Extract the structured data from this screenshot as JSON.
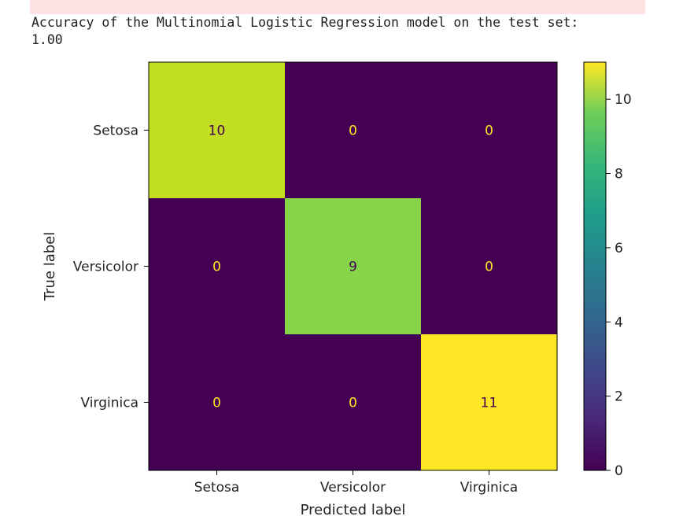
{
  "output": {
    "line1": "Accuracy of the Multinomial Logistic Regression model on the test set:",
    "line2": "1.00"
  },
  "chart_data": {
    "type": "heatmap",
    "title": "",
    "xlabel": "Predicted label",
    "ylabel": "True label",
    "x_categories": [
      "Setosa",
      "Versicolor",
      "Virginica"
    ],
    "y_categories": [
      "Setosa",
      "Versicolor",
      "Virginica"
    ],
    "values": [
      [
        10,
        0,
        0
      ],
      [
        0,
        9,
        0
      ],
      [
        0,
        0,
        11
      ]
    ],
    "colormap": "viridis",
    "colorbar": {
      "min": 0,
      "max": 11,
      "ticks": [
        0,
        2,
        4,
        6,
        8,
        10
      ]
    },
    "cell_colors": {
      "0": "#440154",
      "9": "#86d549",
      "10": "#c2df23",
      "11": "#fde725"
    },
    "text_colors": {
      "low": "#fde725",
      "high": "#440154"
    }
  }
}
